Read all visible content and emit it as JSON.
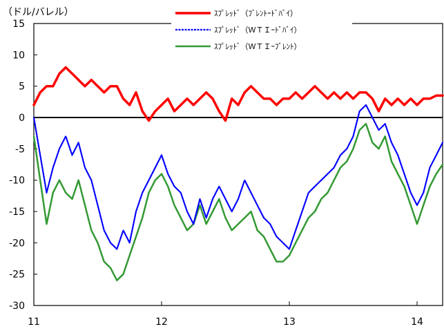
{
  "chart_data": {
    "type": "line",
    "ylabel": "（ドル/バレル）",
    "ylim": [
      -30,
      15
    ],
    "yticks": [
      15,
      10,
      5,
      0,
      -5,
      -10,
      -15,
      -20,
      -25,
      -30
    ],
    "xlim": [
      2011,
      2014.2
    ],
    "xticks": [
      {
        "value": 2011,
        "label": "11"
      },
      {
        "value": 2012,
        "label": "12"
      },
      {
        "value": 2013,
        "label": "13"
      },
      {
        "value": 2014,
        "label": "14"
      }
    ],
    "legend_position": "top-center",
    "grid": false,
    "zero_line": true,
    "series": [
      {
        "name": "ｽﾌﾟﾚｯﾄﾞ（ﾌﾞﾚﾝﾄｰﾄﾞﾊﾞｲ）",
        "color": "#ff0000",
        "style": "solid-thick",
        "x": [
          2011.0,
          2011.05,
          2011.1,
          2011.15,
          2011.2,
          2011.25,
          2011.3,
          2011.35,
          2011.4,
          2011.45,
          2011.5,
          2011.55,
          2011.6,
          2011.65,
          2011.7,
          2011.75,
          2011.8,
          2011.85,
          2011.9,
          2011.95,
          2012.0,
          2012.05,
          2012.1,
          2012.15,
          2012.2,
          2012.25,
          2012.3,
          2012.35,
          2012.4,
          2012.45,
          2012.5,
          2012.55,
          2012.6,
          2012.65,
          2012.7,
          2012.75,
          2012.8,
          2012.85,
          2012.9,
          2012.95,
          2013.0,
          2013.05,
          2013.1,
          2013.15,
          2013.2,
          2013.25,
          2013.3,
          2013.35,
          2013.4,
          2013.45,
          2013.5,
          2013.55,
          2013.6,
          2013.65,
          2013.7,
          2013.75,
          2013.8,
          2013.85,
          2013.9,
          2013.95,
          2014.0,
          2014.05,
          2014.1,
          2014.15,
          2014.2
        ],
        "values": [
          2,
          4,
          5,
          5,
          7,
          8,
          7,
          6,
          5,
          6,
          5,
          4,
          5,
          5,
          3,
          2,
          4,
          1,
          -0.5,
          1,
          2,
          3,
          1,
          2,
          3,
          2,
          3,
          4,
          3,
          1,
          -0.5,
          3,
          2,
          4,
          5,
          4,
          3,
          3,
          2,
          3,
          3,
          4,
          3,
          4,
          5,
          4,
          3,
          4,
          3,
          4,
          3,
          4,
          4,
          3,
          1,
          3,
          2,
          3,
          2,
          3,
          2,
          3,
          3,
          3.5,
          3.5
        ]
      },
      {
        "name": "ｽﾌﾟﾚｯﾄﾞ（ＷＴＩｰﾄﾞﾊﾞｲ）",
        "color": "#0000ff",
        "style": "dotted",
        "x": [
          2011.0,
          2011.05,
          2011.1,
          2011.15,
          2011.2,
          2011.25,
          2011.3,
          2011.35,
          2011.4,
          2011.45,
          2011.5,
          2011.55,
          2011.6,
          2011.65,
          2011.7,
          2011.75,
          2011.8,
          2011.85,
          2011.9,
          2011.95,
          2012.0,
          2012.05,
          2012.1,
          2012.15,
          2012.2,
          2012.25,
          2012.3,
          2012.35,
          2012.4,
          2012.45,
          2012.5,
          2012.55,
          2012.6,
          2012.65,
          2012.7,
          2012.75,
          2012.8,
          2012.85,
          2012.9,
          2012.95,
          2013.0,
          2013.05,
          2013.1,
          2013.15,
          2013.2,
          2013.25,
          2013.3,
          2013.35,
          2013.4,
          2013.45,
          2013.5,
          2013.55,
          2013.6,
          2013.65,
          2013.7,
          2013.75,
          2013.8,
          2013.85,
          2013.9,
          2013.95,
          2014.0,
          2014.05,
          2014.1,
          2014.15,
          2014.2
        ],
        "values": [
          0,
          -6,
          -12,
          -8,
          -5,
          -3,
          -6,
          -4,
          -8,
          -10,
          -14,
          -18,
          -20,
          -21,
          -18,
          -20,
          -15,
          -12,
          -10,
          -8,
          -6,
          -9,
          -11,
          -12,
          -15,
          -17,
          -13,
          -16,
          -13,
          -11,
          -13,
          -15,
          -13,
          -10,
          -12,
          -14,
          -16,
          -17,
          -19,
          -20,
          -21,
          -18,
          -15,
          -12,
          -11,
          -10,
          -9,
          -8,
          -6,
          -5,
          -3,
          1,
          2,
          0,
          -2,
          -1,
          -4,
          -6,
          -9,
          -12,
          -14,
          -12,
          -8,
          -6,
          -4
        ]
      },
      {
        "name": "ｽﾌﾟﾚｯﾄﾞ（ＷＴＩｰﾌﾞﾚﾝﾄ）",
        "color": "#339933",
        "style": "solid",
        "x": [
          2011.0,
          2011.05,
          2011.1,
          2011.15,
          2011.2,
          2011.25,
          2011.3,
          2011.35,
          2011.4,
          2011.45,
          2011.5,
          2011.55,
          2011.6,
          2011.65,
          2011.7,
          2011.75,
          2011.8,
          2011.85,
          2011.9,
          2011.95,
          2012.0,
          2012.05,
          2012.1,
          2012.15,
          2012.2,
          2012.25,
          2012.3,
          2012.35,
          2012.4,
          2012.45,
          2012.5,
          2012.55,
          2012.6,
          2012.65,
          2012.7,
          2012.75,
          2012.8,
          2012.85,
          2012.9,
          2012.95,
          2013.0,
          2013.05,
          2013.1,
          2013.15,
          2013.2,
          2013.25,
          2013.3,
          2013.35,
          2013.4,
          2013.45,
          2013.5,
          2013.55,
          2013.6,
          2013.65,
          2013.7,
          2013.75,
          2013.8,
          2013.85,
          2013.9,
          2013.95,
          2014.0,
          2014.05,
          2014.1,
          2014.15,
          2014.2
        ],
        "values": [
          -3,
          -10,
          -17,
          -12,
          -10,
          -12,
          -13,
          -10,
          -14,
          -18,
          -20,
          -23,
          -24,
          -26,
          -25,
          -22,
          -19,
          -16,
          -12,
          -10,
          -9,
          -11,
          -14,
          -16,
          -18,
          -17,
          -14,
          -17,
          -15,
          -13,
          -16,
          -18,
          -17,
          -16,
          -15,
          -18,
          -19,
          -21,
          -23,
          -23,
          -22,
          -20,
          -18,
          -16,
          -15,
          -13,
          -12,
          -10,
          -8,
          -7,
          -5,
          -2,
          -1,
          -4,
          -5,
          -3,
          -7,
          -9,
          -11,
          -14,
          -17,
          -14,
          -11,
          -9,
          -7.5
        ]
      }
    ]
  }
}
